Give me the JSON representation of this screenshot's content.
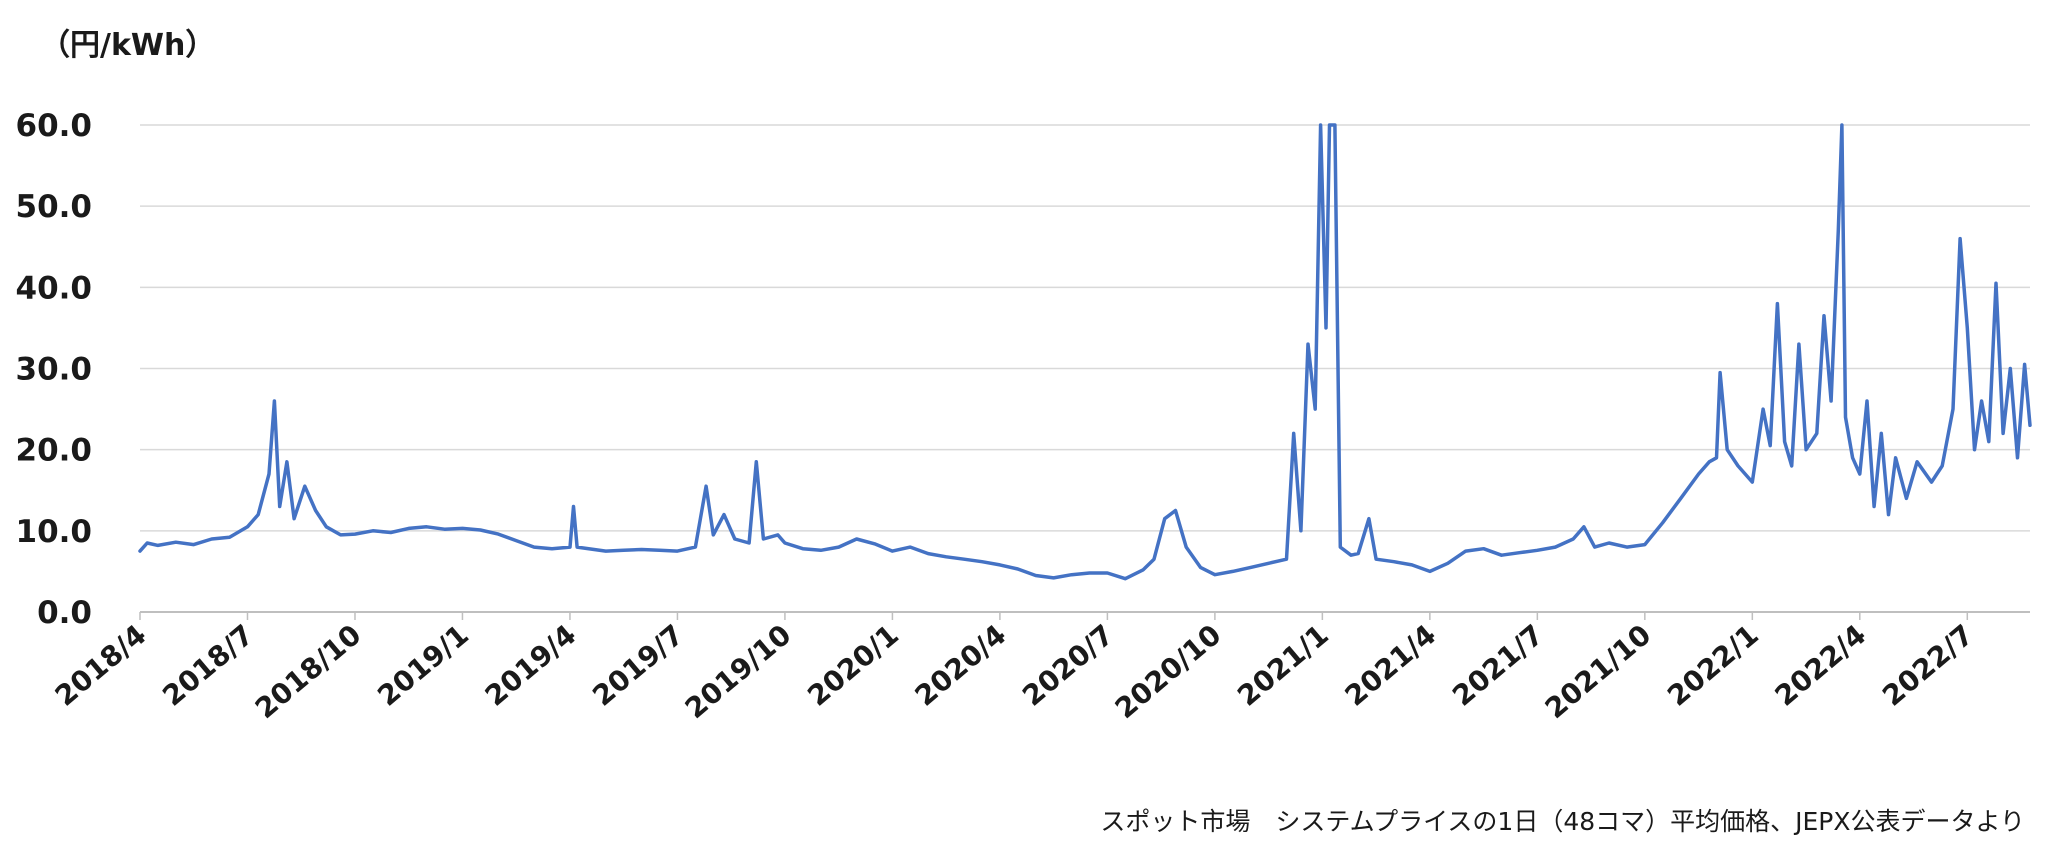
{
  "chart_data": {
    "type": "line",
    "unit_label": "（円/kWh）",
    "source_note": "スポット市場　システムプライスの1日（48コマ）平均価格、JEPX公表データより",
    "y_ticks": [
      "0.0",
      "10.0",
      "20.0",
      "30.0",
      "40.0",
      "50.0",
      "60.0"
    ],
    "ylim": [
      0,
      60
    ],
    "x_ticks": [
      "2018/4",
      "2018/7",
      "2018/10",
      "2019/1",
      "2019/4",
      "2019/7",
      "2019/10",
      "2020/1",
      "2020/4",
      "2020/7",
      "2020/10",
      "2021/1",
      "2021/4",
      "2021/7",
      "2021/10",
      "2022/1",
      "2022/4",
      "2022/7"
    ],
    "x_range": [
      "2018/4",
      "2022/8"
    ],
    "grid": "horizontal",
    "legend": "none",
    "line_color": "#4472C4",
    "grid_color": "#d9d9d9",
    "axis_color": "#bfbfbf",
    "series": [
      {
        "points": [
          [
            "2018/4",
            7.5
          ],
          [
            "2018/4.2",
            8.5
          ],
          [
            "2018/4.5",
            8.2
          ],
          [
            "2018/5",
            8.6
          ],
          [
            "2018/5.5",
            8.3
          ],
          [
            "2018/6",
            9.0
          ],
          [
            "2018/6.5",
            9.2
          ],
          [
            "2018/7",
            10.5
          ],
          [
            "2018/7.3",
            12.0
          ],
          [
            "2018/7.6",
            17.0
          ],
          [
            "2018/7.75",
            26.0
          ],
          [
            "2018/7.9",
            13.0
          ],
          [
            "2018/8.1",
            18.5
          ],
          [
            "2018/8.3",
            11.5
          ],
          [
            "2018/8.6",
            15.5
          ],
          [
            "2018/8.9",
            12.5
          ],
          [
            "2018/9.2",
            10.5
          ],
          [
            "2018/9.6",
            9.5
          ],
          [
            "2018/10",
            9.6
          ],
          [
            "2018/10.5",
            10.0
          ],
          [
            "2018/11",
            9.8
          ],
          [
            "2018/11.5",
            10.3
          ],
          [
            "2018/12",
            10.5
          ],
          [
            "2018/12.5",
            10.2
          ],
          [
            "2019/1",
            10.3
          ],
          [
            "2019/1.5",
            10.1
          ],
          [
            "2019/2",
            9.6
          ],
          [
            "2019/2.5",
            8.8
          ],
          [
            "2019/3",
            8.0
          ],
          [
            "2019/3.5",
            7.8
          ],
          [
            "2019/4",
            8.0
          ],
          [
            "2019/4.1",
            13.0
          ],
          [
            "2019/4.2",
            8.0
          ],
          [
            "2019/5",
            7.5
          ],
          [
            "2019/5.5",
            7.6
          ],
          [
            "2019/6",
            7.7
          ],
          [
            "2019/6.5",
            7.6
          ],
          [
            "2019/7",
            7.5
          ],
          [
            "2019/7.5",
            8.0
          ],
          [
            "2019/7.8",
            15.5
          ],
          [
            "2019/8",
            9.5
          ],
          [
            "2019/8.3",
            12.0
          ],
          [
            "2019/8.6",
            9.0
          ],
          [
            "2019/9",
            8.5
          ],
          [
            "2019/9.2",
            18.5
          ],
          [
            "2019/9.4",
            9.0
          ],
          [
            "2019/9.8",
            9.5
          ],
          [
            "2019/10",
            8.5
          ],
          [
            "2019/10.5",
            7.8
          ],
          [
            "2019/11",
            7.6
          ],
          [
            "2019/11.5",
            8.0
          ],
          [
            "2019/12",
            9.0
          ],
          [
            "2019/12.5",
            8.4
          ],
          [
            "2020/1",
            7.5
          ],
          [
            "2020/1.5",
            8.0
          ],
          [
            "2020/2",
            7.2
          ],
          [
            "2020/2.5",
            6.8
          ],
          [
            "2020/3",
            6.5
          ],
          [
            "2020/3.5",
            6.2
          ],
          [
            "2020/4",
            5.8
          ],
          [
            "2020/4.5",
            5.3
          ],
          [
            "2020/5",
            4.5
          ],
          [
            "2020/5.5",
            4.2
          ],
          [
            "2020/6",
            4.6
          ],
          [
            "2020/6.5",
            4.8
          ],
          [
            "2020/7",
            4.8
          ],
          [
            "2020/7.5",
            4.1
          ],
          [
            "2020/8",
            5.2
          ],
          [
            "2020/8.3",
            6.5
          ],
          [
            "2020/8.6",
            11.5
          ],
          [
            "2020/8.9",
            12.5
          ],
          [
            "2020/9.2",
            8.0
          ],
          [
            "2020/9.6",
            5.5
          ],
          [
            "2020/10",
            4.6
          ],
          [
            "2020/10.5",
            5.0
          ],
          [
            "2020/11",
            5.5
          ],
          [
            "2020/11.5",
            6.0
          ],
          [
            "2020/12",
            6.5
          ],
          [
            "2020/12.2",
            22.0
          ],
          [
            "2020/12.4",
            10.0
          ],
          [
            "2020/12.6",
            33.0
          ],
          [
            "2020/12.8",
            25.0
          ],
          [
            "2020/12.95",
            60.0
          ],
          [
            "2021/1.1",
            35.0
          ],
          [
            "2021/1.2",
            60.0
          ],
          [
            "2021/1.35",
            60.0
          ],
          [
            "2021/1.5",
            8.0
          ],
          [
            "2021/1.8",
            7.0
          ],
          [
            "2021/2",
            7.2
          ],
          [
            "2021/2.3",
            11.5
          ],
          [
            "2021/2.5",
            6.5
          ],
          [
            "2021/3",
            6.2
          ],
          [
            "2021/3.5",
            5.8
          ],
          [
            "2021/4",
            5.0
          ],
          [
            "2021/4.5",
            6.0
          ],
          [
            "2021/5",
            7.5
          ],
          [
            "2021/5.5",
            7.8
          ],
          [
            "2021/6",
            7.0
          ],
          [
            "2021/6.5",
            7.3
          ],
          [
            "2021/7",
            7.6
          ],
          [
            "2021/7.5",
            8.0
          ],
          [
            "2021/8",
            9.0
          ],
          [
            "2021/8.3",
            10.5
          ],
          [
            "2021/8.6",
            8.0
          ],
          [
            "2021/9",
            8.5
          ],
          [
            "2021/9.5",
            8.0
          ],
          [
            "2021/10",
            8.3
          ],
          [
            "2021/10.5",
            11.0
          ],
          [
            "2021/11",
            14.0
          ],
          [
            "2021/11.5",
            17.0
          ],
          [
            "2021/11.8",
            18.5
          ],
          [
            "2021/12",
            19.0
          ],
          [
            "2021/12.1",
            29.5
          ],
          [
            "2021/12.3",
            20.0
          ],
          [
            "2021/12.6",
            18.0
          ],
          [
            "2022/1",
            16.0
          ],
          [
            "2022/1.3",
            25.0
          ],
          [
            "2022/1.5",
            20.5
          ],
          [
            "2022/1.7",
            38.0
          ],
          [
            "2022/1.9",
            21.0
          ],
          [
            "2022/2.1",
            18.0
          ],
          [
            "2022/2.3",
            33.0
          ],
          [
            "2022/2.5",
            20.0
          ],
          [
            "2022/2.8",
            22.0
          ],
          [
            "2022/3",
            36.5
          ],
          [
            "2022/3.2",
            26.0
          ],
          [
            "2022/3.4",
            47.0
          ],
          [
            "2022/3.5",
            60.0
          ],
          [
            "2022/3.6",
            24.0
          ],
          [
            "2022/3.8",
            19.0
          ],
          [
            "2022/4",
            17.0
          ],
          [
            "2022/4.2",
            26.0
          ],
          [
            "2022/4.4",
            13.0
          ],
          [
            "2022/4.6",
            22.0
          ],
          [
            "2022/4.8",
            12.0
          ],
          [
            "2022/5",
            19.0
          ],
          [
            "2022/5.3",
            14.0
          ],
          [
            "2022/5.6",
            18.5
          ],
          [
            "2022/6",
            16.0
          ],
          [
            "2022/6.3",
            18.0
          ],
          [
            "2022/6.6",
            25.0
          ],
          [
            "2022/6.8",
            46.0
          ],
          [
            "2022/7",
            35.0
          ],
          [
            "2022/7.2",
            20.0
          ],
          [
            "2022/7.4",
            26.0
          ],
          [
            "2022/7.6",
            21.0
          ],
          [
            "2022/7.8",
            40.5
          ],
          [
            "2022/8",
            22.0
          ],
          [
            "2022/8.2",
            30.0
          ],
          [
            "2022/8.4",
            19.0
          ],
          [
            "2022/8.6",
            30.5
          ],
          [
            "2022/8.75",
            23.0
          ]
        ]
      }
    ]
  }
}
